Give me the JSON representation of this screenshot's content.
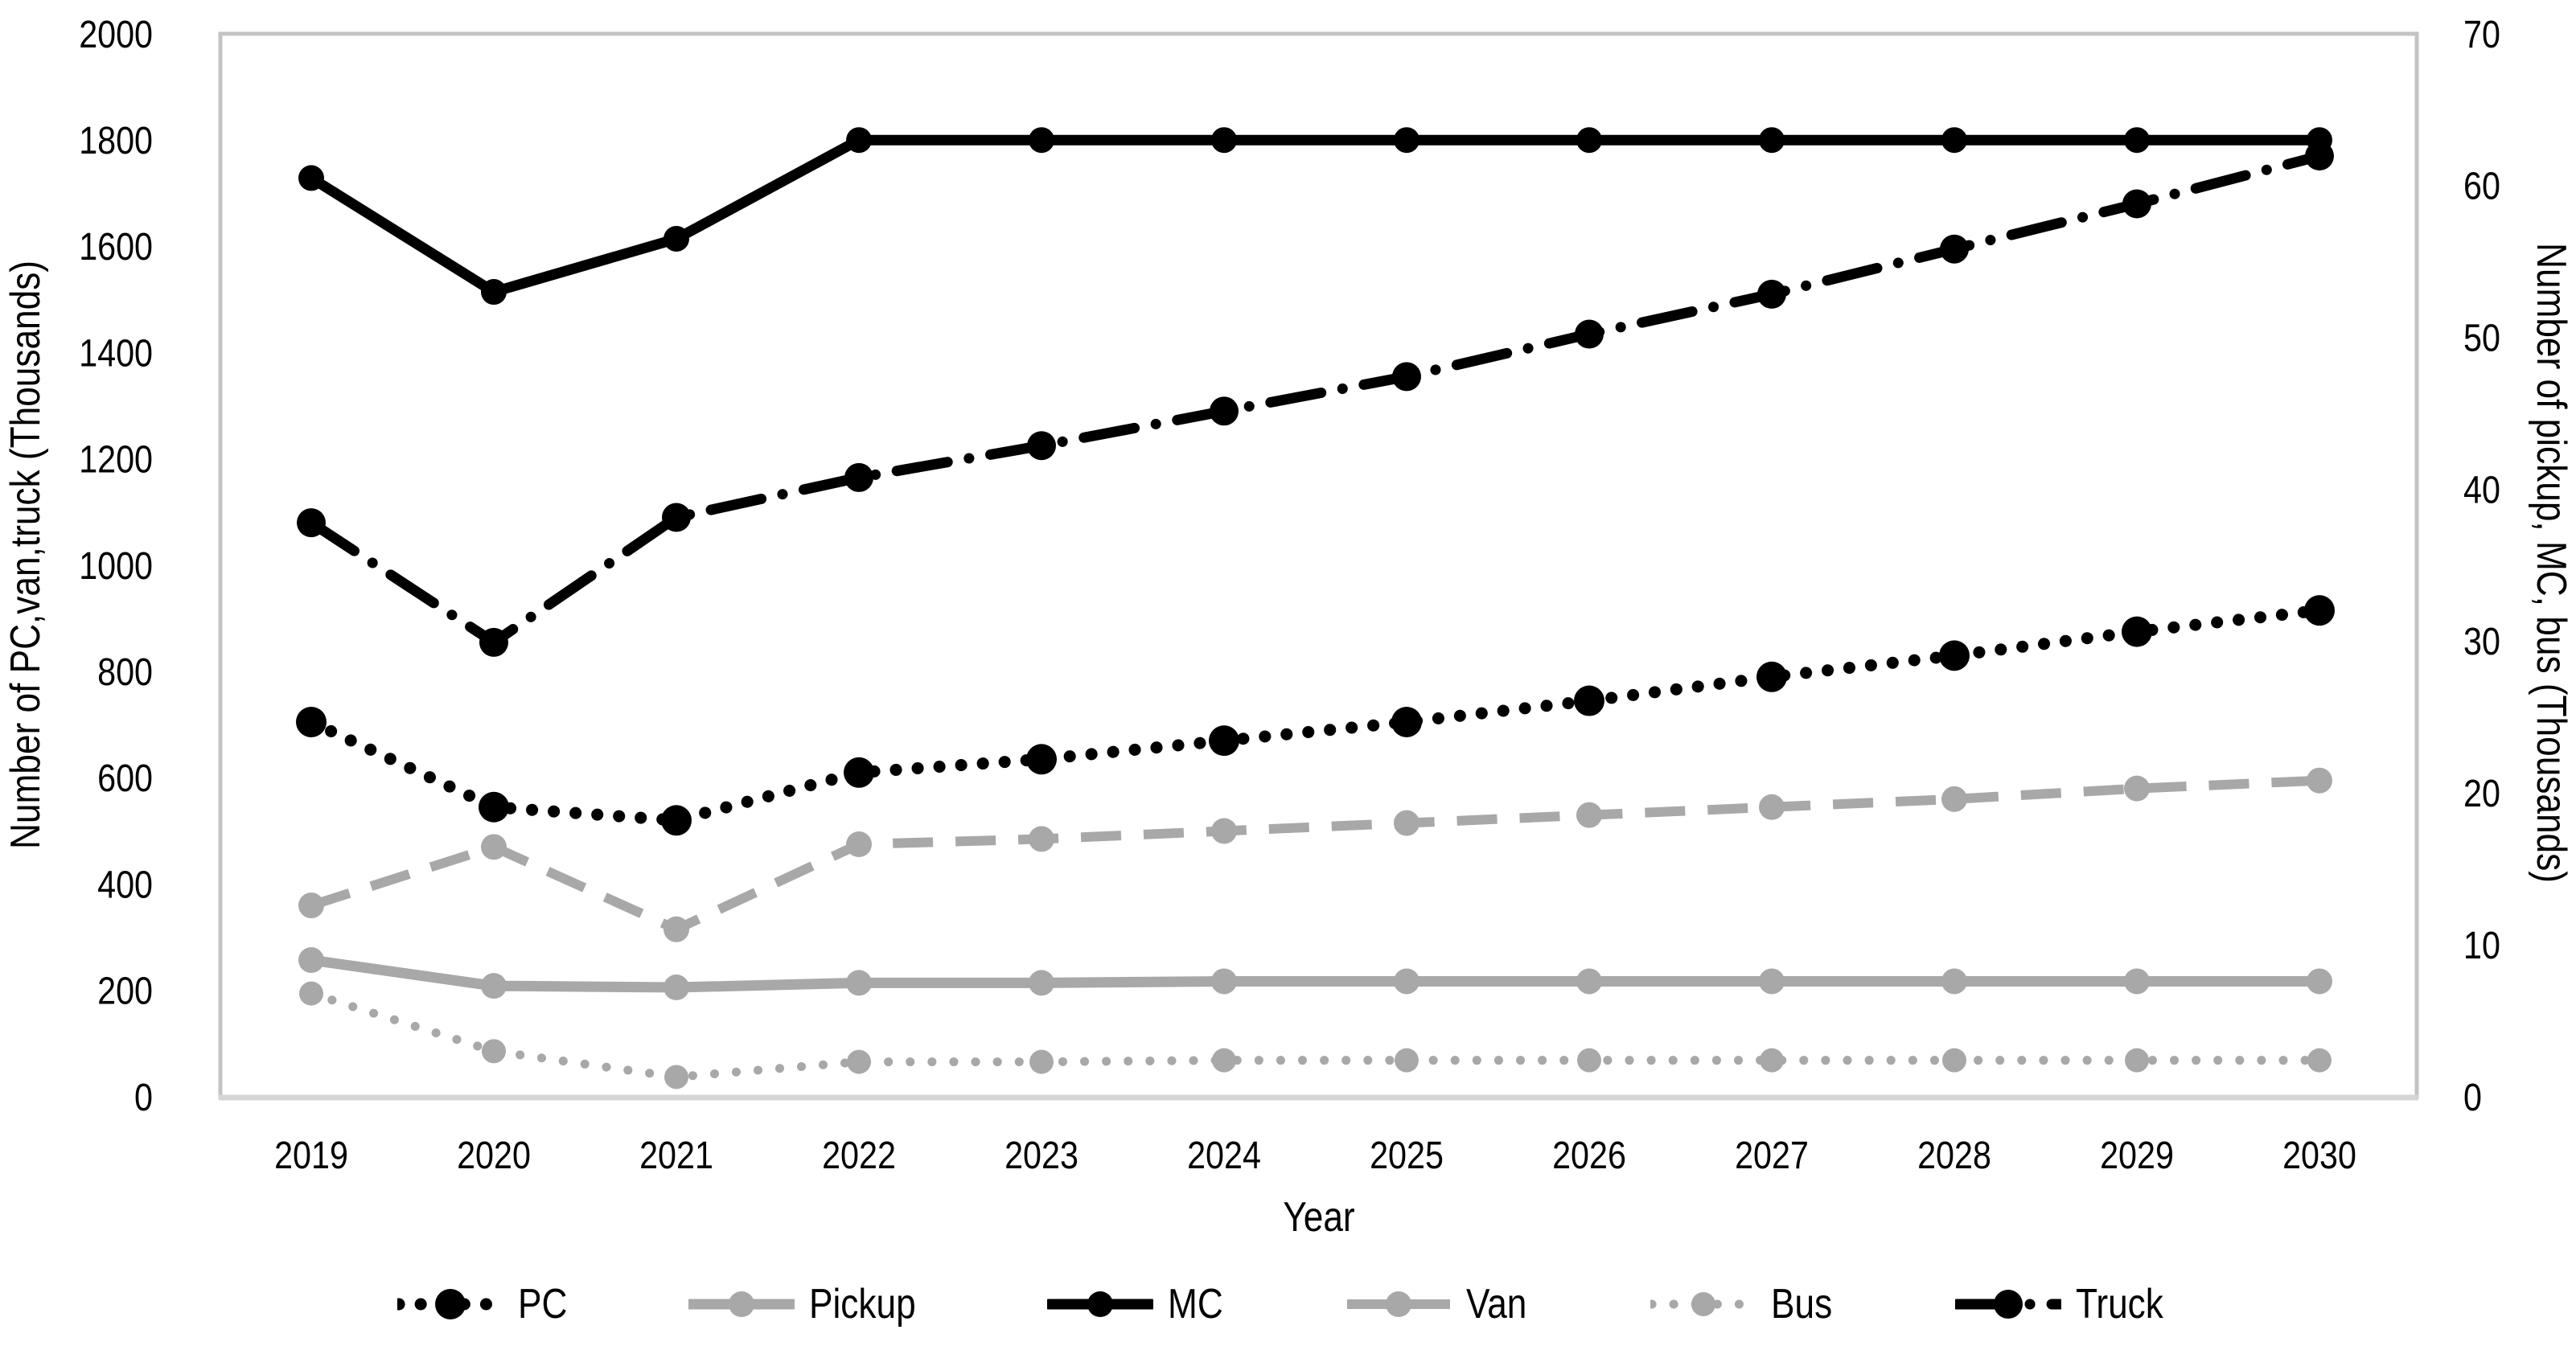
{
  "chart_data": {
    "type": "line",
    "title": "",
    "xlabel": "Year",
    "grid": false,
    "categories": [
      2019,
      2020,
      2021,
      2022,
      2023,
      2024,
      2025,
      2026,
      2027,
      2028,
      2029,
      2030
    ],
    "left_axis": {
      "title": "Number of PC,van,truck (Thousands)",
      "min": 0,
      "max": 2000,
      "tick_step": 200,
      "ticks": [
        0,
        200,
        400,
        600,
        800,
        1000,
        1200,
        1400,
        1600,
        1800,
        2000
      ]
    },
    "right_axis": {
      "title": "Number of pickup, MC, bus (Thousands)",
      "min": 0,
      "max": 70,
      "tick_step": 10,
      "ticks": [
        0,
        10,
        20,
        30,
        40,
        50,
        60,
        70
      ]
    },
    "series": [
      {
        "name": "PC",
        "axis": "left",
        "color": "#000000",
        "line_style": "dotted",
        "values": [
          705,
          545,
          520,
          610,
          635,
          670,
          705,
          745,
          790,
          830,
          875,
          915
        ]
      },
      {
        "name": "Pickup",
        "axis": "right",
        "color": "#a8a8a8",
        "line_style": "solid",
        "values": [
          9,
          7.3,
          7.2,
          7.5,
          7.5,
          7.6,
          7.6,
          7.6,
          7.6,
          7.6,
          7.6,
          7.6
        ]
      },
      {
        "name": "MC",
        "axis": "right",
        "color": "#000000",
        "line_style": "solid",
        "values": [
          60.5,
          53,
          56.5,
          63,
          63,
          63,
          63,
          63,
          63,
          63,
          63,
          63
        ]
      },
      {
        "name": "Van",
        "axis": "left",
        "color": "#a8a8a8",
        "line_style": "dashed",
        "values": [
          360,
          470,
          315,
          475,
          485,
          500,
          515,
          530,
          545,
          560,
          580,
          595
        ]
      },
      {
        "name": "Bus",
        "axis": "right",
        "color": "#a8a8a8",
        "line_style": "dotted",
        "values": [
          6.8,
          3,
          1.3,
          2.3,
          2.3,
          2.4,
          2.4,
          2.4,
          2.4,
          2.4,
          2.4,
          2.4
        ]
      },
      {
        "name": "Truck",
        "axis": "left",
        "color": "#000000",
        "line_style": "dashdot",
        "values": [
          1080,
          855,
          1090,
          1165,
          1225,
          1290,
          1355,
          1435,
          1510,
          1595,
          1680,
          1770
        ]
      }
    ],
    "legend": {
      "position": "bottom",
      "items": [
        "PC",
        "Pickup",
        "MC",
        "Van",
        "Bus",
        "Truck"
      ]
    }
  },
  "colors": {
    "black": "#000000",
    "gray": "#a8a8a8",
    "plot_border": "#c3c3c3",
    "bottom_axis": "#d6d6d6"
  }
}
